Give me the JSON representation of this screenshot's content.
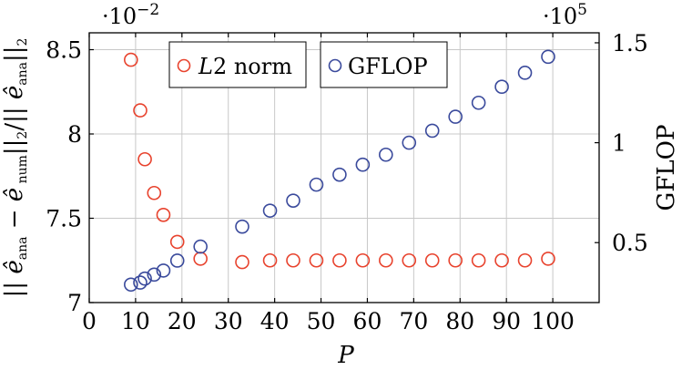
{
  "chart_data": {
    "type": "scatter",
    "xlabel": "P",
    "ylabel": "|| ê_ana − ê_num||_2/|| ê_ana||_2",
    "ylabel_right": "GFLOP",
    "left_scale_factor": "·10^−2",
    "right_scale_factor": "·10^5",
    "xlim": [
      0,
      110
    ],
    "ylim_left": [
      7.0,
      8.6
    ],
    "ylim_right": [
      0.2,
      1.55
    ],
    "x_ticks": [
      "0",
      "10",
      "20",
      "30",
      "40",
      "50",
      "60",
      "70",
      "80",
      "90",
      "100"
    ],
    "y_left_ticks": [
      "7",
      "7.5",
      "8",
      "8.5"
    ],
    "y_right_ticks": [
      "0.5",
      "1",
      "1.5"
    ],
    "grid": true,
    "legend": [
      {
        "label": "L2 norm",
        "color": "#e8432e"
      },
      {
        "label": "GFLOP",
        "color": "#3a4a9c"
      }
    ],
    "series": [
      {
        "name": "L2 norm",
        "axis": "left",
        "color": "#e8432e",
        "x": [
          9,
          11,
          12,
          14,
          16,
          19,
          24,
          33,
          39,
          44,
          49,
          54,
          59,
          64,
          69,
          74,
          79,
          84,
          89,
          94,
          99
        ],
        "y": [
          8.44,
          8.14,
          7.85,
          7.65,
          7.52,
          7.36,
          7.26,
          7.24,
          7.25,
          7.25,
          7.25,
          7.25,
          7.25,
          7.25,
          7.25,
          7.25,
          7.25,
          7.25,
          7.25,
          7.25,
          7.26
        ]
      },
      {
        "name": "GFLOP",
        "axis": "right",
        "color": "#3a4a9c",
        "x": [
          9,
          11,
          12,
          14,
          16,
          19,
          24,
          33,
          39,
          44,
          49,
          54,
          59,
          64,
          69,
          74,
          79,
          84,
          89,
          94,
          99
        ],
        "y": [
          0.29,
          0.3,
          0.32,
          0.34,
          0.36,
          0.41,
          0.48,
          0.58,
          0.66,
          0.71,
          0.79,
          0.84,
          0.89,
          0.94,
          1.0,
          1.06,
          1.13,
          1.2,
          1.28,
          1.35,
          1.43
        ]
      }
    ]
  }
}
